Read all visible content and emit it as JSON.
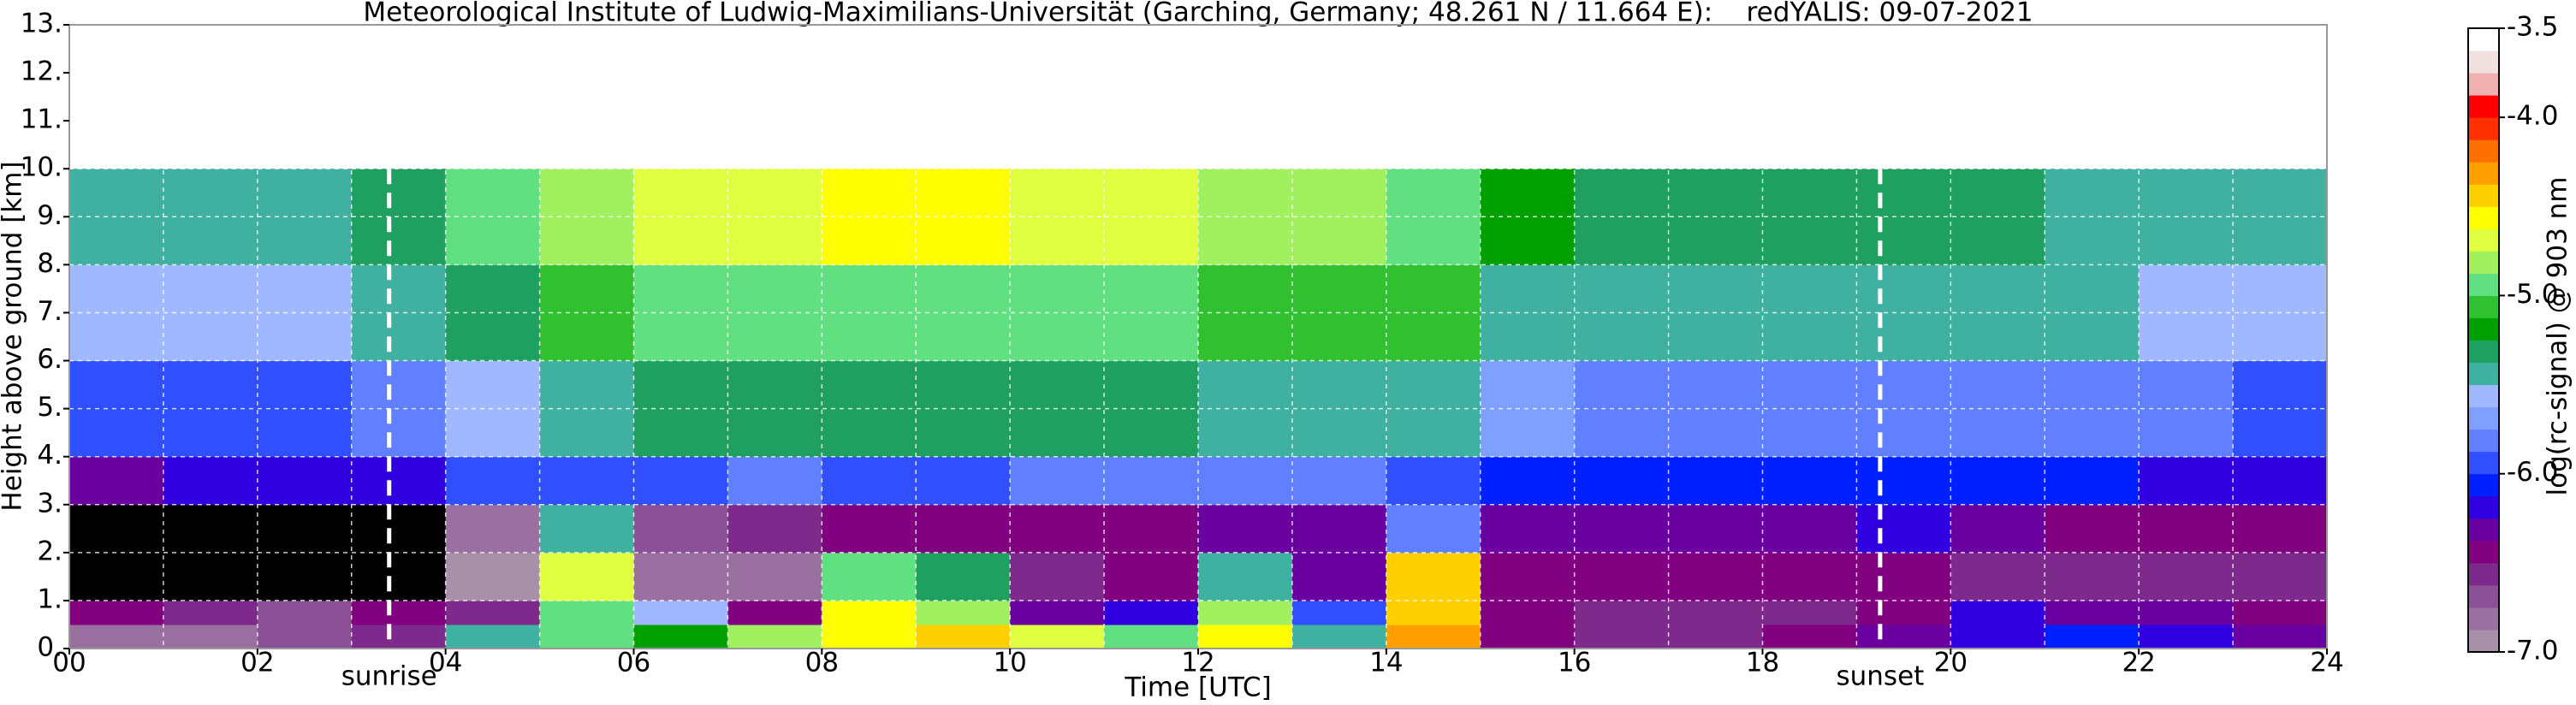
{
  "chart_data": {
    "type": "heatmap",
    "title": "Meteorological Institute of Ludwig-Maximilians-Universität (Garching, Germany; 48.261 N / 11.664 E):    redYALIS: 09-07-2021",
    "x_label": "Time [UTC]",
    "y_label": "Height above ground [km]",
    "colorbar_label": "log(rc-signal) @ 903 nm",
    "xlim": [
      0,
      24
    ],
    "ylim": [
      0,
      13
    ],
    "xticks": [
      {
        "value": 0,
        "label": "00"
      },
      {
        "value": 2,
        "label": "02"
      },
      {
        "value": 4,
        "label": "04"
      },
      {
        "value": 6,
        "label": "06"
      },
      {
        "value": 8,
        "label": "08"
      },
      {
        "value": 10,
        "label": "10"
      },
      {
        "value": 12,
        "label": "12"
      },
      {
        "value": 14,
        "label": "14"
      },
      {
        "value": 16,
        "label": "16"
      },
      {
        "value": 18,
        "label": "18"
      },
      {
        "value": 20,
        "label": "20"
      },
      {
        "value": 22,
        "label": "22"
      },
      {
        "value": 24,
        "label": "24"
      }
    ],
    "xminorgrid": [
      1,
      3,
      5,
      7,
      9,
      11,
      13,
      15,
      17,
      19,
      21,
      23
    ],
    "yticks": [
      {
        "value": 0,
        "label": "0."
      },
      {
        "value": 1,
        "label": "1."
      },
      {
        "value": 2,
        "label": "2."
      },
      {
        "value": 3,
        "label": "3."
      },
      {
        "value": 4,
        "label": "4."
      },
      {
        "value": 5,
        "label": "5."
      },
      {
        "value": 6,
        "label": "6."
      },
      {
        "value": 7,
        "label": "7."
      },
      {
        "value": 8,
        "label": "8."
      },
      {
        "value": 9,
        "label": "9."
      },
      {
        "value": 10,
        "label": "10."
      },
      {
        "value": 11,
        "label": "11."
      },
      {
        "value": 12,
        "label": "12."
      },
      {
        "value": 13,
        "label": "13."
      }
    ],
    "grid": true,
    "grid_color": "#ffffff",
    "clim": [
      -7,
      -3.5
    ],
    "cticks": [
      {
        "value": -3.5,
        "label": "-3.5"
      },
      {
        "value": -4.0,
        "label": "-4.0"
      },
      {
        "value": -5.0,
        "label": "-5.0"
      },
      {
        "value": -6.0,
        "label": "-6.0"
      },
      {
        "value": -7.0,
        "label": "-7.0"
      }
    ],
    "colormap": [
      "#a890a8",
      "#9a70a0",
      "#8c5096",
      "#7d2a8c",
      "#800080",
      "#6a00a0",
      "#3000e0",
      "#0020ff",
      "#3050ff",
      "#6080ff",
      "#80a0ff",
      "#a0b8ff",
      "#40b0a0",
      "#20a060",
      "#00a000",
      "#30c030",
      "#60e080",
      "#a0f060",
      "#e0ff40",
      "#ffff00",
      "#ffd000",
      "#ffa000",
      "#ff7000",
      "#ff3000",
      "#ff0000",
      "#f0b0b0",
      "#f0e0e0",
      "#ffffff"
    ],
    "under_color": "#000000",
    "x_bins": [
      0,
      1,
      2,
      3,
      4,
      5,
      6,
      7,
      8,
      9,
      10,
      11,
      12,
      13,
      14,
      15,
      16,
      17,
      18,
      19,
      20,
      21,
      22,
      23,
      24
    ],
    "y_bins": [
      0,
      0.5,
      1,
      2,
      3,
      4,
      6,
      8,
      10
    ],
    "z": [
      [
        -6.8,
        -6.8,
        -6.7,
        -6.6,
        -5.5,
        -5.0,
        -5.2,
        -4.8,
        -4.6,
        -4.5,
        -4.7,
        -5.0,
        -4.6,
        -5.5,
        -4.3,
        -6.5,
        -6.6,
        -6.6,
        -6.5,
        -6.3,
        -6.2,
        -6.1,
        -6.2,
        -6.3
      ],
      [
        -6.5,
        -6.6,
        -6.7,
        -6.5,
        -6.6,
        -4.9,
        -5.6,
        -6.5,
        -4.6,
        -4.8,
        -6.3,
        -6.2,
        -4.8,
        -5.9,
        -4.4,
        -6.5,
        -6.6,
        -6.6,
        -6.6,
        -6.4,
        -6.2,
        -6.3,
        -6.3,
        -6.4
      ],
      [
        -7.3,
        -7.3,
        -7.2,
        -7.2,
        -6.9,
        -4.7,
        -6.8,
        -6.8,
        -5.0,
        -5.3,
        -6.6,
        -6.5,
        -5.4,
        -6.3,
        -4.5,
        -6.5,
        -6.5,
        -6.5,
        -6.5,
        -6.5,
        -6.6,
        -6.6,
        -6.6,
        -6.6
      ],
      [
        -7.3,
        -7.2,
        -7.2,
        -7.2,
        -6.8,
        -5.5,
        -6.7,
        -6.6,
        -6.5,
        -6.4,
        -6.4,
        -6.4,
        -6.3,
        -6.3,
        -5.8,
        -6.3,
        -6.3,
        -6.3,
        -6.3,
        -6.2,
        -6.3,
        -6.4,
        -6.4,
        -6.4
      ],
      [
        -6.3,
        -6.2,
        -6.2,
        -6.2,
        -6.0,
        -5.9,
        -5.9,
        -5.8,
        -5.9,
        -5.9,
        -5.8,
        -5.8,
        -5.8,
        -5.8,
        -5.9,
        -6.1,
        -6.1,
        -6.1,
        -6.1,
        -6.1,
        -6.1,
        -6.1,
        -6.2,
        -6.2
      ],
      [
        -5.9,
        -5.9,
        -5.9,
        -5.8,
        -5.6,
        -5.4,
        -5.3,
        -5.3,
        -5.3,
        -5.3,
        -5.3,
        -5.3,
        -5.4,
        -5.4,
        -5.5,
        -5.7,
        -5.8,
        -5.8,
        -5.8,
        -5.8,
        -5.8,
        -5.8,
        -5.8,
        -5.9
      ],
      [
        -5.6,
        -5.6,
        -5.6,
        -5.5,
        -5.3,
        -5.1,
        -5.0,
        -5.0,
        -4.9,
        -4.9,
        -5.0,
        -5.0,
        -5.1,
        -5.1,
        -5.1,
        -5.4,
        -5.5,
        -5.5,
        -5.5,
        -5.5,
        -5.5,
        -5.5,
        -5.6,
        -5.6
      ],
      [
        -5.4,
        -5.4,
        -5.4,
        -5.3,
        -5.0,
        -4.8,
        -4.7,
        -4.7,
        -4.6,
        -4.6,
        -4.7,
        -4.7,
        -4.8,
        -4.8,
        -4.9,
        -5.2,
        -5.3,
        -5.3,
        -5.3,
        -5.3,
        -5.3,
        -5.4,
        -5.4,
        -5.4
      ]
    ],
    "annotations": [
      {
        "x": 3.4,
        "label": "sunrise"
      },
      {
        "x": 19.25,
        "label": "sunset"
      }
    ]
  }
}
